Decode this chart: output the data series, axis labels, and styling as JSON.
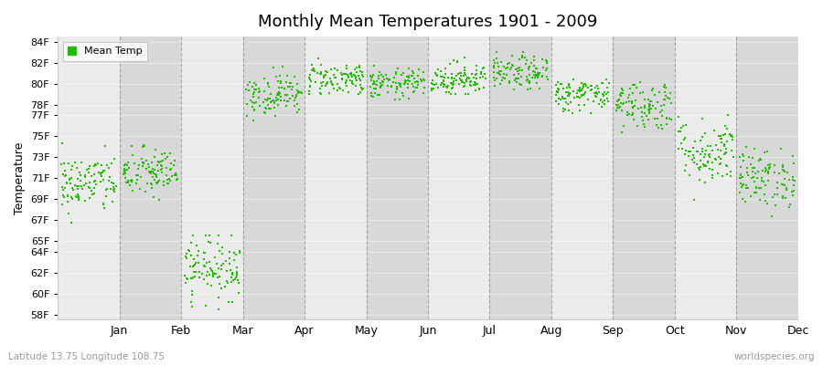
{
  "title": "Monthly Mean Temperatures 1901 - 2009",
  "ylabel": "Temperature",
  "yticks": [
    58,
    60,
    62,
    64,
    65,
    67,
    69,
    71,
    73,
    75,
    77,
    78,
    80,
    82,
    84
  ],
  "ytick_labels": [
    "58F",
    "60F",
    "62F",
    "64F",
    "65F",
    "67F",
    "69F",
    "71F",
    "73F",
    "75F",
    "77F",
    "78F",
    "80F",
    "82F",
    "84F"
  ],
  "ylim": [
    57.5,
    84.5
  ],
  "months": [
    "Jan",
    "Feb",
    "Mar",
    "Apr",
    "May",
    "Jun",
    "Jul",
    "Aug",
    "Sep",
    "Oct",
    "Nov",
    "Dec"
  ],
  "dot_color": "#22bb00",
  "dot_size": 3,
  "bg_color_light": "#ebebeb",
  "bg_color_dark": "#d8d8d8",
  "grid_color": "#888888",
  "subtitle": "Latitude 13.75 Longitude 108.75",
  "watermark": "worldspecies.org",
  "legend_label": "Mean Temp",
  "seed": 42,
  "n_years": 109,
  "month_means": [
    70.5,
    71.5,
    62.5,
    79.0,
    80.5,
    80.0,
    80.5,
    81.0,
    79.0,
    78.0,
    73.5,
    71.0
  ],
  "month_stds": [
    1.4,
    1.2,
    1.5,
    1.0,
    0.8,
    0.7,
    0.8,
    0.8,
    0.8,
    1.2,
    1.6,
    1.4
  ],
  "month_mins": [
    66.5,
    64.0,
    58.5,
    76.5,
    79.0,
    78.5,
    79.0,
    79.5,
    77.0,
    75.0,
    67.0,
    67.0
  ],
  "month_maxs": [
    75.5,
    75.0,
    65.5,
    82.0,
    82.5,
    82.5,
    82.5,
    83.0,
    81.0,
    81.0,
    79.0,
    75.5
  ]
}
